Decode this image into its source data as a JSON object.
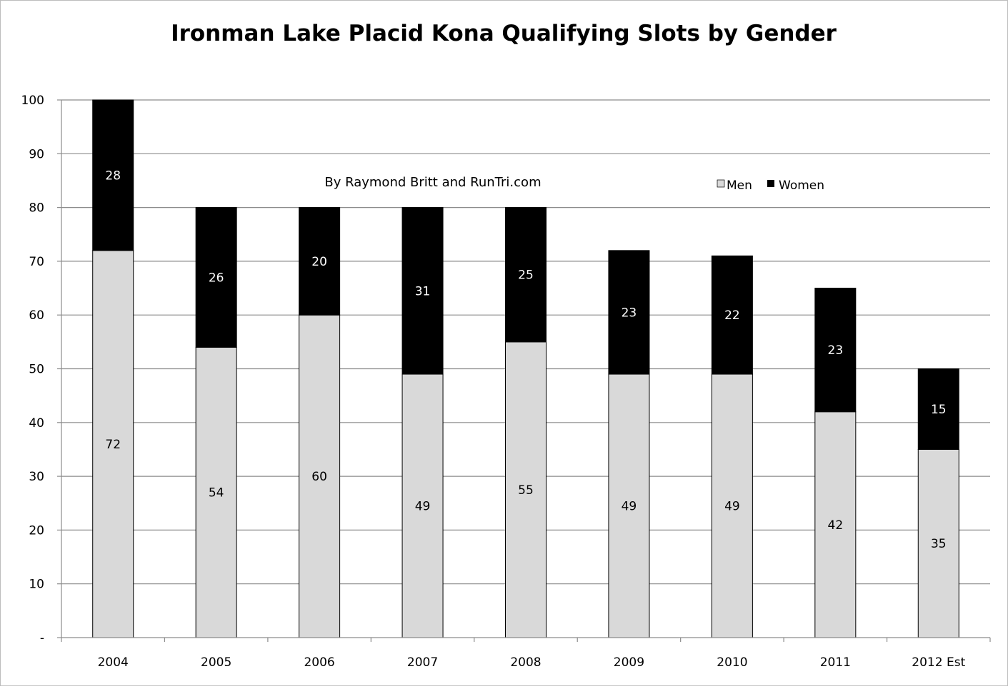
{
  "chart_data": {
    "type": "bar",
    "stacked": true,
    "title": "Ironman Lake Placid Kona Qualifying Slots by Gender",
    "subtitle": "By Raymond Britt and RunTri.com",
    "xlabel": "",
    "ylabel": "",
    "categories": [
      "2004",
      "2005",
      "2006",
      "2007",
      "2008",
      "2009",
      "2010",
      "2011",
      "2012 Est"
    ],
    "series": [
      {
        "name": "Men",
        "values": [
          72,
          54,
          60,
          49,
          55,
          49,
          49,
          42,
          35
        ],
        "color": "#d9d9d9",
        "label_color": "#000000"
      },
      {
        "name": "Women",
        "values": [
          28,
          26,
          20,
          31,
          25,
          23,
          22,
          23,
          15
        ],
        "color": "#000000",
        "label_color": "#ffffff"
      }
    ],
    "ylim": [
      0,
      100
    ],
    "yticks": [
      0,
      10,
      20,
      30,
      40,
      50,
      60,
      70,
      80,
      90,
      100
    ],
    "ytick_labels": [
      "-",
      "10",
      "20",
      "30",
      "40",
      "50",
      "60",
      "70",
      "80",
      "90",
      "100"
    ],
    "grid": true,
    "legend_position": "top-right"
  }
}
